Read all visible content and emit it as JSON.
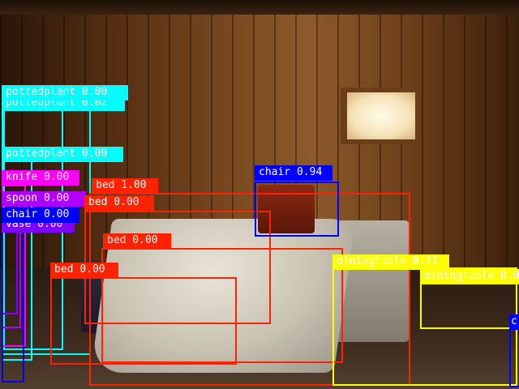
{
  "image": {
    "description_colors": {
      "wall": "#7a4a20",
      "window": "#fffbe8",
      "bedding": "#e9e4d8"
    }
  },
  "detections": [
    {
      "label": "pottedplant 0.00",
      "box_color": "#00ffff",
      "text_color": "#ffffff"
    },
    {
      "label": "pottedplant 0.02",
      "box_color": "#00ffff",
      "text_color": "#ffffff"
    },
    {
      "label": "pottedplant 0.00",
      "box_color": "#00ffff",
      "text_color": "#ffffff"
    },
    {
      "label": "knife 0.00",
      "box_color": "#ff00ff",
      "text_color": "#ffffff"
    },
    {
      "label": "spoon 0.00",
      "box_color": "#b000ff",
      "text_color": "#ffffff"
    },
    {
      "label": "vase 0.00",
      "box_color": "#8000ff",
      "text_color": "#ffffff"
    },
    {
      "label": "chair 0.00",
      "box_color": "#0000ff",
      "text_color": "#ffffff"
    },
    {
      "label": "bed 1.00",
      "box_color": "#ff2200",
      "text_color": "#ffffff"
    },
    {
      "label": "bed 0.00",
      "box_color": "#ff2200",
      "text_color": "#ffffff"
    },
    {
      "label": "bed 0.00",
      "box_color": "#ff2200",
      "text_color": "#ffffff"
    },
    {
      "label": "bed 0.00",
      "box_color": "#ff2200",
      "text_color": "#ffffff"
    },
    {
      "label": "chair 0.94",
      "box_color": "#0000ff",
      "text_color": "#ffffff"
    },
    {
      "label": "diningtable 0.11",
      "box_color": "#ffff00",
      "text_color": "#ffffff"
    },
    {
      "label": "diningtable 0.0",
      "box_color": "#ffff00",
      "text_color": "#ffffff"
    },
    {
      "label": "c",
      "box_color": "#0000ff",
      "text_color": "#ffffff"
    }
  ]
}
